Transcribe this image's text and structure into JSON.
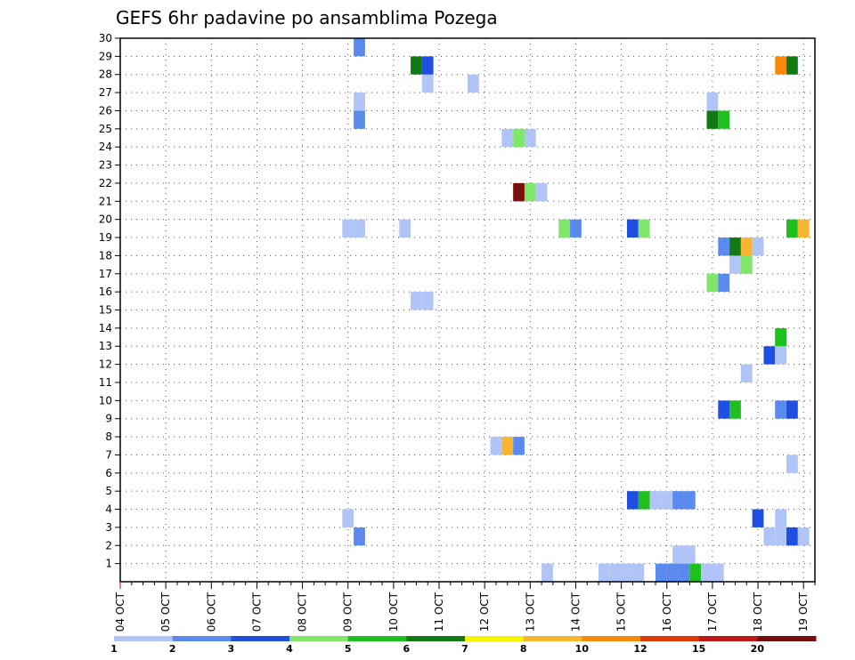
{
  "chart_data": {
    "type": "heatmap",
    "title": "GEFS 6hr padavine po ansamblima Pozega",
    "x_tick_labels": [
      "04 OCT",
      "05 OCT",
      "06 OCT",
      "07 OCT",
      "08 OCT",
      "09 OCT",
      "10 OCT",
      "11 OCT",
      "12 OCT",
      "13 OCT",
      "14 OCT",
      "15 OCT",
      "16 OCT",
      "17 OCT",
      "18 OCT",
      "19 OCT"
    ],
    "y_tick_labels": [
      "1",
      "2",
      "3",
      "4",
      "5",
      "6",
      "7",
      "8",
      "9",
      "10",
      "11",
      "12",
      "13",
      "14",
      "15",
      "16",
      "17",
      "18",
      "19",
      "20",
      "21",
      "22",
      "23",
      "24",
      "25",
      "26",
      "27",
      "28",
      "29",
      "30"
    ],
    "xlim": [
      0,
      61
    ],
    "ylim": [
      0,
      30
    ],
    "time_step_hours": 6,
    "grid": true,
    "legend": {
      "placement": "bottom",
      "labels": [
        "1",
        "2",
        "3",
        "4",
        "5",
        "6",
        "7",
        "8",
        "10",
        "12",
        "15",
        "20"
      ],
      "colors": [
        "#b0c4f8",
        "#5b8aee",
        "#1f4fe0",
        "#7fe66a",
        "#1fbf1f",
        "#127a12",
        "#f6f600",
        "#f7b531",
        "#f78a0a",
        "#e03a0a",
        "#c21818",
        "#7a0d0d"
      ]
    },
    "cells": [
      {
        "x": 42.0,
        "y": 0,
        "v": 1
      },
      {
        "x": 43.0,
        "y": 0,
        "v": 1
      },
      {
        "x": 44.0,
        "y": 0,
        "v": 1
      },
      {
        "x": 45.0,
        "y": 0,
        "v": 1
      },
      {
        "x": 47.0,
        "y": 0,
        "v": 2
      },
      {
        "x": 48.0,
        "y": 0,
        "v": 2
      },
      {
        "x": 49.0,
        "y": 0,
        "v": 2
      },
      {
        "x": 50.0,
        "y": 0,
        "v": 5
      },
      {
        "x": 51.0,
        "y": 0,
        "v": 1
      },
      {
        "x": 52.0,
        "y": 0,
        "v": 1
      },
      {
        "x": 37.0,
        "y": 0,
        "v": 1
      },
      {
        "x": 48.5,
        "y": 1,
        "v": 1
      },
      {
        "x": 49.5,
        "y": 1,
        "v": 1
      },
      {
        "x": 20.5,
        "y": 2,
        "v": 2
      },
      {
        "x": 56.5,
        "y": 2,
        "v": 1
      },
      {
        "x": 57.5,
        "y": 2,
        "v": 1
      },
      {
        "x": 58.5,
        "y": 2,
        "v": 3
      },
      {
        "x": 59.5,
        "y": 2,
        "v": 1
      },
      {
        "x": 19.5,
        "y": 3,
        "v": 1
      },
      {
        "x": 55.5,
        "y": 3,
        "v": 3
      },
      {
        "x": 57.5,
        "y": 3,
        "v": 1
      },
      {
        "x": 44.5,
        "y": 4,
        "v": 3
      },
      {
        "x": 45.5,
        "y": 4,
        "v": 5
      },
      {
        "x": 46.5,
        "y": 4,
        "v": 1
      },
      {
        "x": 47.5,
        "y": 4,
        "v": 1
      },
      {
        "x": 48.5,
        "y": 4,
        "v": 2
      },
      {
        "x": 49.5,
        "y": 4,
        "v": 2
      },
      {
        "x": 58.5,
        "y": 6,
        "v": 1
      },
      {
        "x": 32.5,
        "y": 7,
        "v": 1
      },
      {
        "x": 33.5,
        "y": 7,
        "v": 8
      },
      {
        "x": 34.5,
        "y": 7,
        "v": 2
      },
      {
        "x": 52.5,
        "y": 9,
        "v": 3
      },
      {
        "x": 53.5,
        "y": 9,
        "v": 5
      },
      {
        "x": 57.5,
        "y": 9,
        "v": 2
      },
      {
        "x": 58.5,
        "y": 9,
        "v": 3
      },
      {
        "x": 54.5,
        "y": 11,
        "v": 1
      },
      {
        "x": 56.5,
        "y": 12,
        "v": 3
      },
      {
        "x": 57.5,
        "y": 12,
        "v": 1
      },
      {
        "x": 57.5,
        "y": 13,
        "v": 5
      },
      {
        "x": 25.5,
        "y": 15,
        "v": 1
      },
      {
        "x": 26.5,
        "y": 15,
        "v": 1
      },
      {
        "x": 51.5,
        "y": 16,
        "v": 4
      },
      {
        "x": 52.5,
        "y": 16,
        "v": 2
      },
      {
        "x": 53.5,
        "y": 17,
        "v": 1
      },
      {
        "x": 54.5,
        "y": 17,
        "v": 4
      },
      {
        "x": 52.5,
        "y": 18,
        "v": 2
      },
      {
        "x": 53.5,
        "y": 18,
        "v": 6
      },
      {
        "x": 54.5,
        "y": 18,
        "v": 9
      },
      {
        "x": 55.5,
        "y": 18,
        "v": 1
      },
      {
        "x": 19.5,
        "y": 19,
        "v": 1
      },
      {
        "x": 20.5,
        "y": 19,
        "v": 1
      },
      {
        "x": 24.5,
        "y": 19,
        "v": 1
      },
      {
        "x": 38.5,
        "y": 19,
        "v": 4
      },
      {
        "x": 39.5,
        "y": 19,
        "v": 2
      },
      {
        "x": 44.5,
        "y": 19,
        "v": 3
      },
      {
        "x": 45.5,
        "y": 19,
        "v": 4
      },
      {
        "x": 58.5,
        "y": 19,
        "v": 5
      },
      {
        "x": 59.5,
        "y": 19,
        "v": 9
      },
      {
        "x": 34.5,
        "y": 21,
        "v": 20
      },
      {
        "x": 35.5,
        "y": 21,
        "v": 4
      },
      {
        "x": 36.5,
        "y": 21,
        "v": 1
      },
      {
        "x": 33.5,
        "y": 24,
        "v": 1
      },
      {
        "x": 34.5,
        "y": 24,
        "v": 4
      },
      {
        "x": 35.5,
        "y": 24,
        "v": 1
      },
      {
        "x": 20.5,
        "y": 25,
        "v": 2
      },
      {
        "x": 51.5,
        "y": 25,
        "v": 6
      },
      {
        "x": 52.5,
        "y": 25,
        "v": 5
      },
      {
        "x": 20.5,
        "y": 26,
        "v": 1
      },
      {
        "x": 51.5,
        "y": 26,
        "v": 1
      },
      {
        "x": 26.5,
        "y": 27,
        "v": 1
      },
      {
        "x": 30.5,
        "y": 27,
        "v": 1
      },
      {
        "x": 25.5,
        "y": 28,
        "v": 6
      },
      {
        "x": 26.5,
        "y": 28,
        "v": 3
      },
      {
        "x": 57.5,
        "y": 28,
        "v": 10
      },
      {
        "x": 58.5,
        "y": 28,
        "v": 6
      },
      {
        "x": 20.5,
        "y": 29,
        "v": 2
      }
    ]
  }
}
